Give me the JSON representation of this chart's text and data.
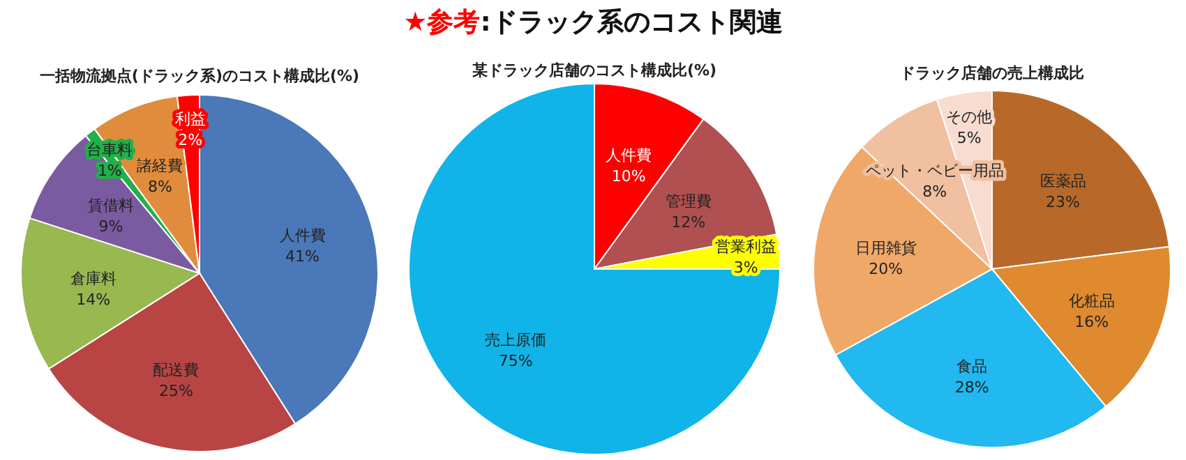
{
  "chart_data": [
    {
      "type": "other",
      "title": "★参考",
      "subtitle": ":ドラック系のコスト関連",
      "color": "#ff0000"
    },
    {
      "type": "pie",
      "title": "一括物流拠点(ドラック系)のコスト構成比(%)",
      "data_labels": true,
      "categories": [
        "人件費",
        "配送費",
        "倉庫料",
        "賃借料",
        "台車料",
        "諸経費",
        "利益"
      ],
      "values": [
        41,
        25,
        14,
        9,
        1,
        8,
        2
      ],
      "value_labels": [
        "41%",
        "25%",
        "14%",
        "9%",
        "1%",
        "8%",
        "2%"
      ],
      "colors": [
        "#4a78b8",
        "#b94444",
        "#98b850",
        "#7a5aa0",
        "#22b04a",
        "#e08c3c",
        "#ff0000"
      ]
    },
    {
      "type": "pie",
      "title": "某ドラック店舗のコスト構成比(%)",
      "data_labels": true,
      "categories": [
        "人件費",
        "管理費",
        "営業利益",
        "売上原価"
      ],
      "values": [
        10,
        12,
        3,
        75
      ],
      "value_labels": [
        "10%",
        "12%",
        "3%",
        "75%"
      ],
      "colors": [
        "#ff0000",
        "#b05050",
        "#ffff00",
        "#10b4e8"
      ]
    },
    {
      "type": "pie",
      "title": "ドラック店舗の売上構成比",
      "data_labels": true,
      "categories": [
        "医薬品",
        "化粧品",
        "食品",
        "日用雑貨",
        "ペット・ベビー用品",
        "その他"
      ],
      "values": [
        23,
        16,
        28,
        20,
        8,
        5
      ],
      "value_labels": [
        "23%",
        "16%",
        "28%",
        "20%",
        "8%",
        "5%"
      ],
      "colors": [
        "#b8692a",
        "#e08a30",
        "#22b8f0",
        "#f0a868",
        "#f0c0a0",
        "#f8dcd0"
      ]
    }
  ]
}
